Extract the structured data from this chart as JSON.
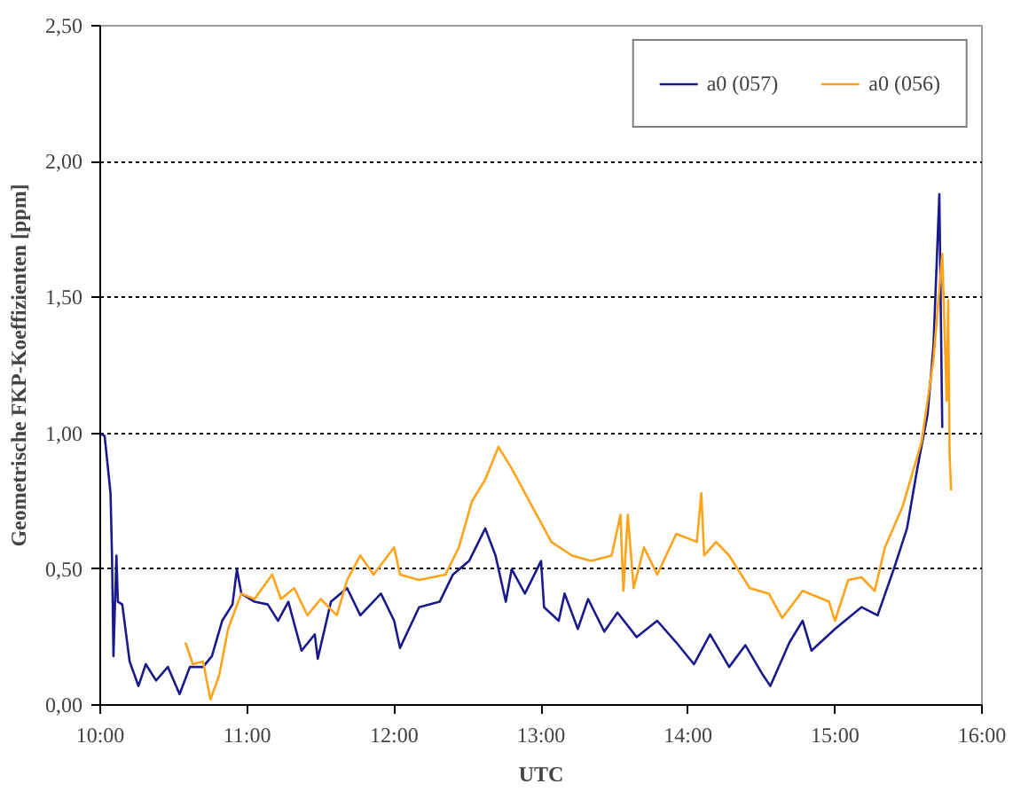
{
  "chart_data": {
    "type": "line",
    "xlabel": "UTC",
    "ylabel": "Geometrische FKP-Koeffizienten [ppm]",
    "xlim": [
      10,
      16
    ],
    "ylim": [
      0,
      2.5
    ],
    "xticks": [
      {
        "value": 10,
        "label": "10:00"
      },
      {
        "value": 11,
        "label": "11:00"
      },
      {
        "value": 12,
        "label": "12:00"
      },
      {
        "value": 13,
        "label": "13:00"
      },
      {
        "value": 14,
        "label": "14:00"
      },
      {
        "value": 15,
        "label": "15:00"
      },
      {
        "value": 16,
        "label": "16:00"
      }
    ],
    "yticks": [
      {
        "value": 0,
        "label": "0,00"
      },
      {
        "value": 0.5,
        "label": "0,50"
      },
      {
        "value": 1,
        "label": "1,00"
      },
      {
        "value": 1.5,
        "label": "1,50"
      },
      {
        "value": 2,
        "label": "2,00"
      },
      {
        "value": 2.5,
        "label": "2,50"
      }
    ],
    "grid": "y",
    "legend": "top right",
    "marker": "none",
    "line_style": "solid",
    "series": [
      {
        "name": "a0 (057)",
        "color": "#1a1a8c",
        "x": [
          10.0,
          10.03,
          10.07,
          10.08,
          10.09,
          10.11,
          10.12,
          10.15,
          10.2,
          10.26,
          10.31,
          10.38,
          10.46,
          10.54,
          10.61,
          10.7,
          10.76,
          10.83,
          10.9,
          10.93,
          10.96,
          11.05,
          11.14,
          11.21,
          11.28,
          11.37,
          11.46,
          11.48,
          11.57,
          11.68,
          11.77,
          11.91,
          12.0,
          12.04,
          12.17,
          12.31,
          12.4,
          12.51,
          12.62,
          12.69,
          12.76,
          12.8,
          12.89,
          13.0,
          13.02,
          13.12,
          13.16,
          13.25,
          13.32,
          13.43,
          13.52,
          13.65,
          13.79,
          13.92,
          14.04,
          14.15,
          14.28,
          14.39,
          14.51,
          14.56,
          14.69,
          14.78,
          14.84,
          15.0,
          15.18,
          15.29,
          15.4,
          15.49,
          15.56,
          15.63,
          15.67,
          15.71,
          15.73
        ],
        "values": [
          1.0,
          0.99,
          0.78,
          0.55,
          0.18,
          0.55,
          0.38,
          0.37,
          0.16,
          0.07,
          0.15,
          0.09,
          0.14,
          0.04,
          0.14,
          0.14,
          0.18,
          0.31,
          0.37,
          0.5,
          0.41,
          0.38,
          0.37,
          0.31,
          0.38,
          0.2,
          0.26,
          0.17,
          0.38,
          0.43,
          0.33,
          0.41,
          0.31,
          0.21,
          0.36,
          0.38,
          0.48,
          0.53,
          0.65,
          0.55,
          0.38,
          0.5,
          0.41,
          0.53,
          0.36,
          0.31,
          0.41,
          0.28,
          0.39,
          0.27,
          0.34,
          0.25,
          0.31,
          0.23,
          0.15,
          0.26,
          0.14,
          0.22,
          0.11,
          0.07,
          0.23,
          0.31,
          0.2,
          0.28,
          0.36,
          0.33,
          0.5,
          0.65,
          0.87,
          1.07,
          1.32,
          1.88,
          1.02
        ]
      },
      {
        "name": "a0 (056)",
        "color": "#ffa31a",
        "x": [
          10.58,
          10.63,
          10.7,
          10.75,
          10.81,
          10.87,
          10.96,
          11.05,
          11.17,
          11.23,
          11.32,
          11.41,
          11.5,
          11.61,
          11.68,
          11.77,
          11.86,
          12.0,
          12.04,
          12.17,
          12.35,
          12.44,
          12.53,
          12.62,
          12.71,
          12.8,
          12.94,
          13.07,
          13.21,
          13.34,
          13.48,
          13.54,
          13.56,
          13.59,
          13.63,
          13.7,
          13.79,
          13.92,
          14.06,
          14.09,
          14.11,
          14.19,
          14.28,
          14.42,
          14.55,
          14.64,
          14.78,
          14.96,
          15.0,
          15.09,
          15.18,
          15.27,
          15.34,
          15.46,
          15.59,
          15.67,
          15.73,
          15.76,
          15.77,
          15.78,
          15.79
        ],
        "values": [
          0.23,
          0.15,
          0.16,
          0.02,
          0.11,
          0.28,
          0.41,
          0.39,
          0.48,
          0.39,
          0.43,
          0.33,
          0.39,
          0.33,
          0.46,
          0.55,
          0.48,
          0.58,
          0.48,
          0.46,
          0.48,
          0.58,
          0.75,
          0.83,
          0.95,
          0.87,
          0.73,
          0.6,
          0.55,
          0.53,
          0.55,
          0.7,
          0.42,
          0.7,
          0.43,
          0.58,
          0.48,
          0.63,
          0.6,
          0.78,
          0.55,
          0.6,
          0.55,
          0.43,
          0.41,
          0.32,
          0.42,
          0.38,
          0.31,
          0.46,
          0.47,
          0.42,
          0.58,
          0.73,
          0.97,
          1.27,
          1.66,
          1.12,
          1.49,
          0.92,
          0.79
        ]
      }
    ]
  }
}
